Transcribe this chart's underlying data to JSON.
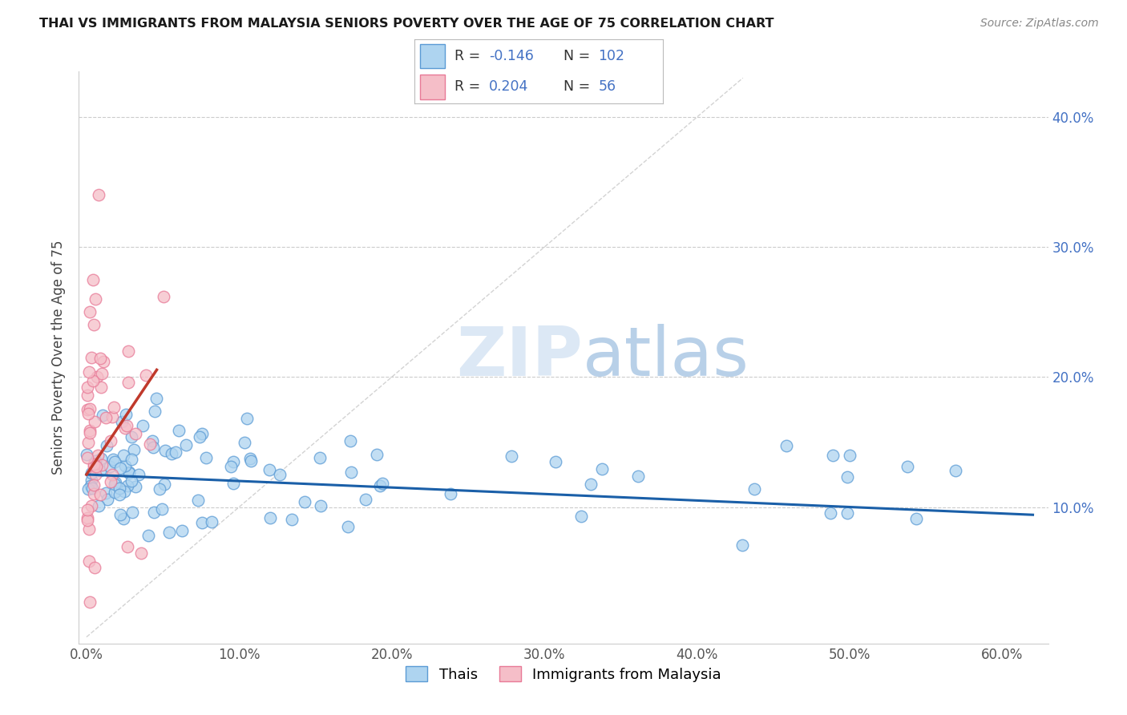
{
  "title": "THAI VS IMMIGRANTS FROM MALAYSIA SENIORS POVERTY OVER THE AGE OF 75 CORRELATION CHART",
  "source": "Source: ZipAtlas.com",
  "ylabel": "Seniors Poverty Over the Age of 75",
  "xlim": [
    -0.005,
    0.63
  ],
  "ylim": [
    -0.005,
    0.435
  ],
  "xtick_vals": [
    0.0,
    0.1,
    0.2,
    0.3,
    0.4,
    0.5,
    0.6
  ],
  "ytick_vals": [
    0.1,
    0.2,
    0.3,
    0.4
  ],
  "thai_color_fill": "#aed4f0",
  "thai_color_edge": "#5b9bd5",
  "malaysia_color_fill": "#f5bec8",
  "malaysia_color_edge": "#e87a97",
  "trend_thai_color": "#1a5fa8",
  "trend_malaysia_color": "#c0392b",
  "diag_line_color": "#c8c8c8",
  "watermark_color": "#dce8f5",
  "right_tick_color": "#4472c4",
  "title_fontsize": 11.5,
  "source_fontsize": 10,
  "tick_fontsize": 12,
  "ylabel_fontsize": 12
}
